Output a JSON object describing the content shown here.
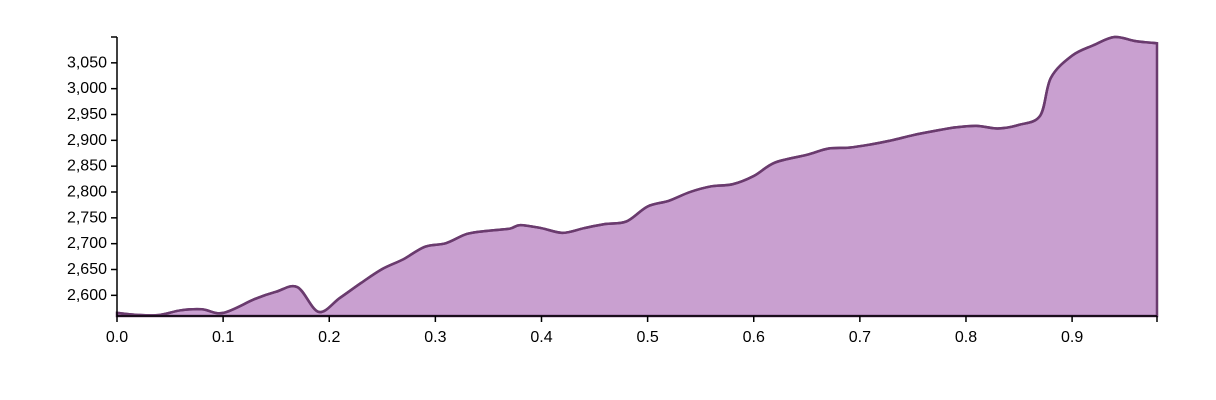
{
  "chart_data": {
    "type": "area",
    "title": "",
    "xlabel": "",
    "ylabel": "",
    "xlim": [
      0,
      0.98
    ],
    "ylim": [
      2560,
      3100
    ],
    "x_ticks": [
      0.0,
      0.1,
      0.2,
      0.3,
      0.4,
      0.5,
      0.6,
      0.7,
      0.8,
      0.9
    ],
    "x_tick_labels": [
      "0.0",
      "0.1",
      "0.2",
      "0.3",
      "0.4",
      "0.5",
      "0.6",
      "0.7",
      "0.8",
      "0.9"
    ],
    "y_ticks": [
      2600,
      2650,
      2700,
      2750,
      2800,
      2850,
      2900,
      2950,
      3000,
      3050
    ],
    "y_tick_labels": [
      "2,600",
      "2,650",
      "2,700",
      "2,750",
      "2,800",
      "2,850",
      "2,900",
      "2,950",
      "3,000",
      "3,050"
    ],
    "grid": false,
    "fill_color": "#c9a0d0",
    "line_color": "#6a3b6e",
    "x": [
      0.0,
      0.02,
      0.04,
      0.06,
      0.08,
      0.1,
      0.13,
      0.15,
      0.17,
      0.19,
      0.21,
      0.23,
      0.25,
      0.27,
      0.29,
      0.31,
      0.33,
      0.35,
      0.37,
      0.38,
      0.4,
      0.42,
      0.44,
      0.46,
      0.48,
      0.5,
      0.52,
      0.54,
      0.56,
      0.58,
      0.6,
      0.62,
      0.65,
      0.67,
      0.69,
      0.71,
      0.73,
      0.75,
      0.77,
      0.79,
      0.81,
      0.83,
      0.85,
      0.87,
      0.88,
      0.9,
      0.92,
      0.94,
      0.96,
      0.98
    ],
    "values": [
      2566,
      2562,
      2562,
      2571,
      2573,
      2566,
      2593,
      2607,
      2616,
      2568,
      2595,
      2624,
      2651,
      2670,
      2694,
      2701,
      2719,
      2725,
      2729,
      2736,
      2730,
      2721,
      2730,
      2738,
      2743,
      2772,
      2783,
      2800,
      2811,
      2815,
      2831,
      2857,
      2872,
      2884,
      2886,
      2892,
      2900,
      2910,
      2918,
      2925,
      2928,
      2923,
      2930,
      2948,
      3021,
      3064,
      3084,
      3100,
      3092,
      3088
    ]
  }
}
